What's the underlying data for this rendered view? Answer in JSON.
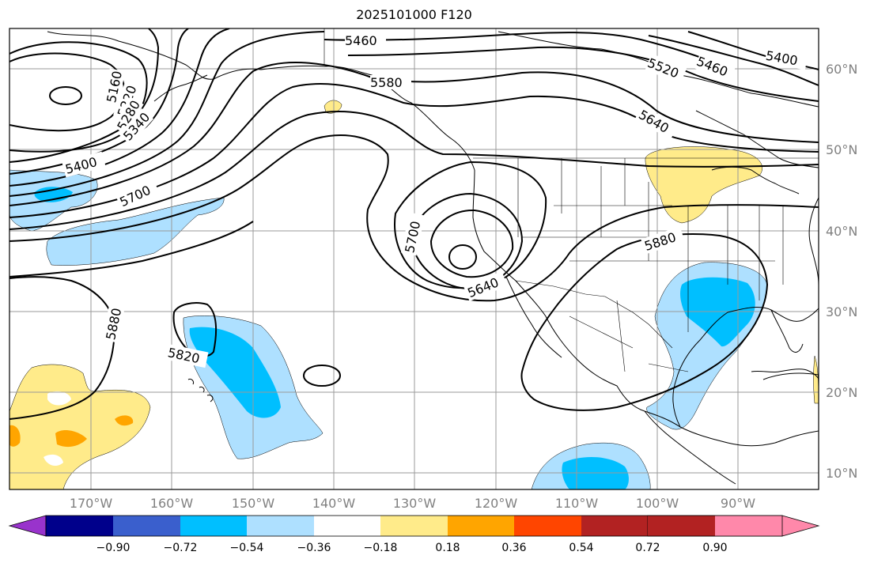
{
  "title": "2025101000 F120",
  "lon_ticks": [
    "170°W",
    "160°W",
    "150°W",
    "140°W",
    "130°W",
    "120°W",
    "110°W",
    "100°W",
    "90°W"
  ],
  "lat_ticks": [
    "60°N",
    "50°N",
    "40°N",
    "30°N",
    "20°N",
    "10°N"
  ],
  "contour_labels": [
    "5460",
    "5580",
    "5520",
    "5460",
    "5400",
    "5160",
    "5220",
    "5280",
    "5340",
    "5400",
    "5700",
    "5640",
    "5700",
    "5640",
    "5880",
    "5880",
    "5820"
  ],
  "colorbar": {
    "ticks": [
      "−0.90",
      "−0.72",
      "−0.54",
      "−0.36",
      "−0.18",
      "0.18",
      "0.36",
      "0.54",
      "0.72",
      "0.90"
    ],
    "colors": [
      "#9933cc",
      "#00008b",
      "#3a5fcd",
      "#00bfff",
      "#aee0ff",
      "#ffffff",
      "#ffeb8a",
      "#ffa500",
      "#ff4500",
      "#b22222",
      "#ff88aa"
    ]
  },
  "colors": {
    "negative_light": "#aee0ff",
    "negative_mid": "#00bfff",
    "positive_light": "#ffeb8a",
    "positive_mid": "#ffa500"
  }
}
